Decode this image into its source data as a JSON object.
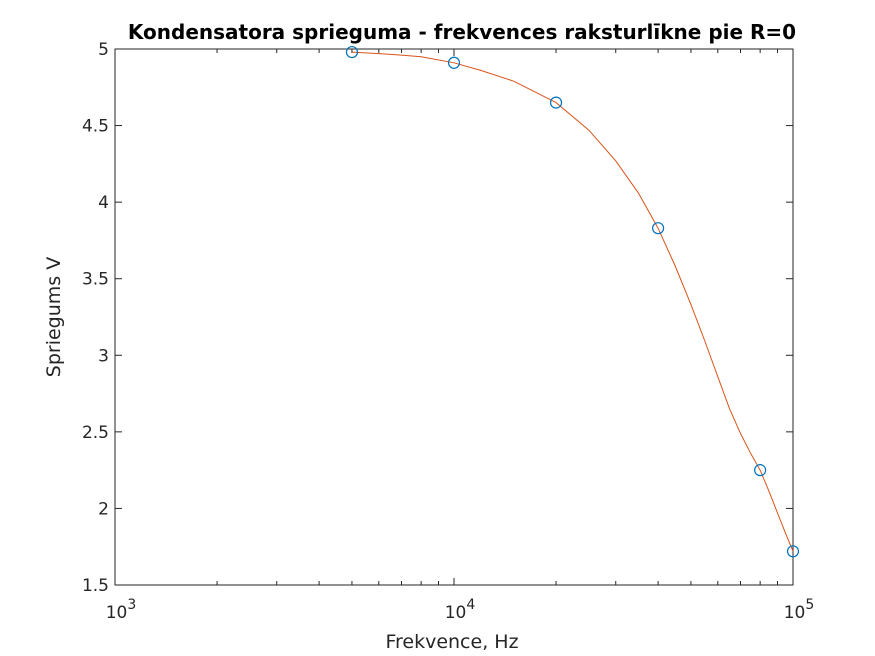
{
  "chart_data": {
    "type": "line",
    "title": "Kondensatora sprieguma - frekvences raksturlīkne pie R=0",
    "xlabel": "Frekvence, Hz",
    "ylabel": "Spriegums V",
    "xscale": "log",
    "xlim": [
      1000,
      100000
    ],
    "ylim": [
      1.5,
      5
    ],
    "grid": false,
    "legend": "none",
    "x_ticks": [
      {
        "value": 1000,
        "base": "10",
        "exp": "3"
      },
      {
        "value": 10000,
        "base": "10",
        "exp": "4"
      },
      {
        "value": 100000,
        "base": "10",
        "exp": "5"
      }
    ],
    "y_ticks": [
      {
        "value": 1.5,
        "label": "1.5"
      },
      {
        "value": 2,
        "label": "2"
      },
      {
        "value": 2.5,
        "label": "2.5"
      },
      {
        "value": 3,
        "label": "3"
      },
      {
        "value": 3.5,
        "label": "3.5"
      },
      {
        "value": 4,
        "label": "4"
      },
      {
        "value": 4.5,
        "label": "4.5"
      },
      {
        "value": 5,
        "label": "5"
      }
    ],
    "series": [
      {
        "style": "markers",
        "marker": "circle",
        "color": "#0072bd",
        "x": [
          5000,
          10000,
          20000,
          40000,
          80000,
          100000
        ],
        "y": [
          4.98,
          4.91,
          4.65,
          3.83,
          2.25,
          1.72
        ]
      },
      {
        "style": "line",
        "color": "#d95319",
        "x": [
          5000,
          6000,
          7000,
          8000,
          10000,
          12000,
          15000,
          20000,
          25000,
          30000,
          35000,
          40000,
          45000,
          50000,
          55000,
          60000,
          65000,
          70000,
          75000,
          80000,
          85000,
          90000,
          95000,
          100000
        ],
        "y": [
          4.98,
          4.97,
          4.96,
          4.95,
          4.91,
          4.86,
          4.79,
          4.65,
          4.47,
          4.27,
          4.06,
          3.83,
          3.58,
          3.33,
          3.09,
          2.86,
          2.65,
          2.49,
          2.36,
          2.25,
          2.11,
          1.97,
          1.84,
          1.72
        ]
      }
    ],
    "colors": {
      "axis": "#262626",
      "markers": "#0072bd",
      "fit_line": "#d95319"
    }
  }
}
